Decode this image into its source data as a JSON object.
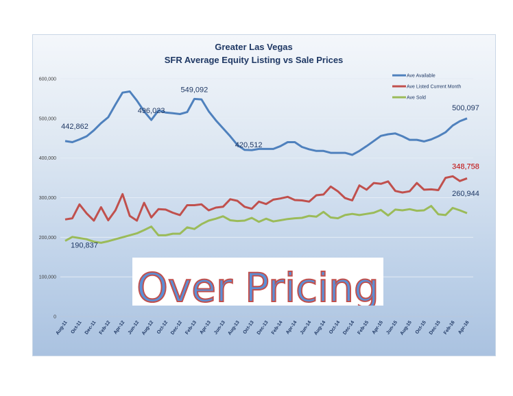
{
  "chart_data": {
    "type": "line",
    "title": "Greater Las Vegas",
    "subtitle": "SFR Average Equity Listing vs Sale Prices",
    "xlabel": "",
    "ylabel": "",
    "ylim": [
      0,
      600000
    ],
    "yticks": [
      "0",
      "100,000",
      "200,000",
      "300,000",
      "400,000",
      "500,000",
      "600,000"
    ],
    "grid": true,
    "legend": "top-right",
    "x": [
      "Aug-11",
      "Sep-11",
      "Oct-11",
      "Nov-11",
      "Dec-11",
      "Jan-12",
      "Feb-12",
      "Mar-12",
      "Apr-12",
      "May-12",
      "Jun-12",
      "Jul-12",
      "Aug-12",
      "Sep-12",
      "Oct-12",
      "Nov-12",
      "Dec-12",
      "Jan-13",
      "Feb-13",
      "Mar-13",
      "Apr-13",
      "May-13",
      "Jun-13",
      "Jul-13",
      "Aug-13",
      "Sep-13",
      "Oct-13",
      "Nov-13",
      "Dec-13",
      "Jan-14",
      "Feb-14",
      "Mar-14",
      "Apr-14",
      "May-14",
      "Jun-14",
      "Jul-14",
      "Aug-14",
      "Sep-14",
      "Oct-14",
      "Nov-14",
      "Dec-14",
      "Jan-15",
      "Feb-15",
      "Mar-15",
      "Apr-15",
      "May-15",
      "Jun-15",
      "Jul-15",
      "Aug-15",
      "Sep-15",
      "Oct-15",
      "Nov-15",
      "Dec-15",
      "Jan-16",
      "Feb-16",
      "Mar-16",
      "Apr-16"
    ],
    "xtick_labels": [
      "Aug-11",
      "Oct-11",
      "Dec-11",
      "Feb-12",
      "Apr-12",
      "Jun-12",
      "Aug-12",
      "Oct-12",
      "Dec-12",
      "Feb-13",
      "Apr-13",
      "Jun-13",
      "Aug-13",
      "Oct-13",
      "Dec-13",
      "Feb-14",
      "Apr-14",
      "Jun-14",
      "Aug-14",
      "Oct-14",
      "Dec-14",
      "Feb-15",
      "Apr-15",
      "Jun-15",
      "Aug-15",
      "Oct-15",
      "Dec-15",
      "Feb-16",
      "Apr-16"
    ],
    "series": [
      {
        "name": "Ave Available",
        "color": "#4f81bd",
        "values": [
          442862,
          440000,
          447000,
          455000,
          470000,
          488000,
          503000,
          535000,
          565000,
          568000,
          545000,
          518000,
          496023,
          520000,
          515000,
          513000,
          511000,
          516000,
          549092,
          548000,
          518000,
          495000,
          475000,
          455000,
          433000,
          420512,
          420000,
          423000,
          423000,
          423000,
          430000,
          440000,
          440000,
          428000,
          422000,
          418000,
          418000,
          413000,
          413000,
          413000,
          408000,
          418000,
          430000,
          443000,
          456000,
          460000,
          462000,
          455000,
          446000,
          446000,
          442000,
          447000,
          455000,
          465000,
          482000,
          493000,
          500097
        ],
        "labels": [
          {
            "index": 0,
            "text": "442,862"
          },
          {
            "index": 12,
            "text": "496,023"
          },
          {
            "index": 18,
            "text": "549,092"
          },
          {
            "index": 25,
            "text": "420,512"
          },
          {
            "index": 56,
            "text": "500,097"
          }
        ]
      },
      {
        "name": "Ave Listed Current Month",
        "color": "#c0504d",
        "values": [
          245000,
          248000,
          283000,
          260000,
          242000,
          276000,
          243000,
          268000,
          309000,
          254000,
          242000,
          287000,
          250000,
          271000,
          270000,
          262000,
          256000,
          281000,
          281000,
          283000,
          268000,
          275000,
          277000,
          296000,
          292000,
          277000,
          272000,
          290000,
          284000,
          295000,
          298000,
          302000,
          294000,
          293000,
          290000,
          306000,
          308000,
          328000,
          316000,
          299000,
          293000,
          331000,
          320000,
          337000,
          335000,
          341000,
          317000,
          313000,
          316000,
          337000,
          320000,
          321000,
          319000,
          350000,
          354000,
          342000,
          348758
        ],
        "labels": [
          {
            "index": 56,
            "text": "348,758"
          }
        ]
      },
      {
        "name": "Ave Sold",
        "color": "#9bbb59",
        "values": [
          190837,
          201000,
          198000,
          195000,
          189000,
          186000,
          190000,
          195000,
          200000,
          205000,
          210000,
          218000,
          227000,
          205000,
          205000,
          209000,
          209000,
          225000,
          221000,
          233000,
          242000,
          247000,
          253000,
          243000,
          241000,
          242000,
          249000,
          239000,
          247000,
          240000,
          243000,
          246000,
          248000,
          249000,
          254000,
          252000,
          264000,
          250000,
          248000,
          256000,
          259000,
          256000,
          259000,
          262000,
          269000,
          255000,
          270000,
          268000,
          271000,
          267000,
          268000,
          279000,
          258000,
          256000,
          274000,
          268000,
          260944
        ],
        "labels": [
          {
            "index": 0,
            "text": "190,837"
          },
          {
            "index": 56,
            "text": "260,944"
          }
        ]
      }
    ],
    "annotation": "Over Pricing"
  }
}
